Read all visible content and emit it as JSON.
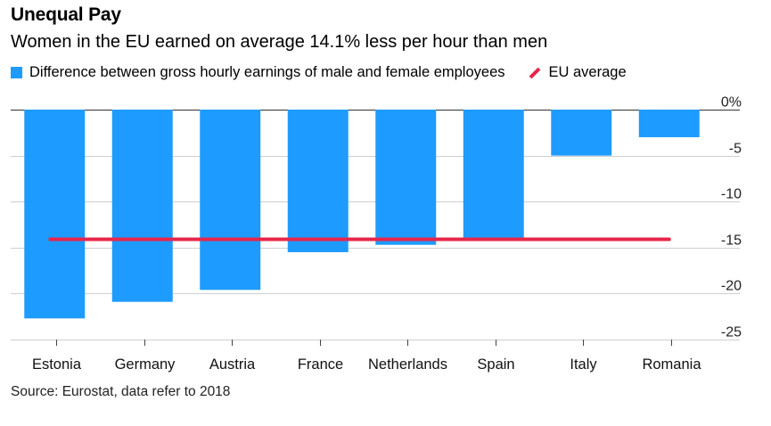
{
  "title": "Unequal Pay",
  "subtitle": "Women in the EU earned on average 14.1% less per hour than men",
  "legend": {
    "series_label": "Difference between gross hourly earnings of male and female employees",
    "line_label": "EU average"
  },
  "source": "Source: Eurostat, data refer to 2018",
  "colors": {
    "bar": "#1e9bff",
    "average": "#e8254a",
    "grid": "#cfcfcf",
    "axis": "#333333"
  },
  "chart_data": {
    "type": "bar",
    "title": "Unequal Pay",
    "subtitle": "Women in the EU earned on average 14.1% less per hour than men",
    "categories": [
      "Estonia",
      "Germany",
      "Austria",
      "France",
      "Netherlands",
      "Spain",
      "Italy",
      "Romania"
    ],
    "series": [
      {
        "name": "Difference between gross hourly earnings of male and female employees",
        "values": [
          -22.7,
          -20.9,
          -19.6,
          -15.5,
          -14.7,
          -14.0,
          -5.0,
          -3.0
        ]
      }
    ],
    "reference_line": {
      "name": "EU average",
      "value": -14.1
    },
    "yticks": [
      0,
      -5,
      -10,
      -15,
      -20,
      -25
    ],
    "ytick_labels": [
      "0%",
      "-5",
      "-10",
      "-15",
      "-20",
      "-25"
    ],
    "ylim": [
      -25,
      0
    ],
    "xlabel": "",
    "ylabel": "",
    "grid": true,
    "legend_position": "top-left"
  }
}
